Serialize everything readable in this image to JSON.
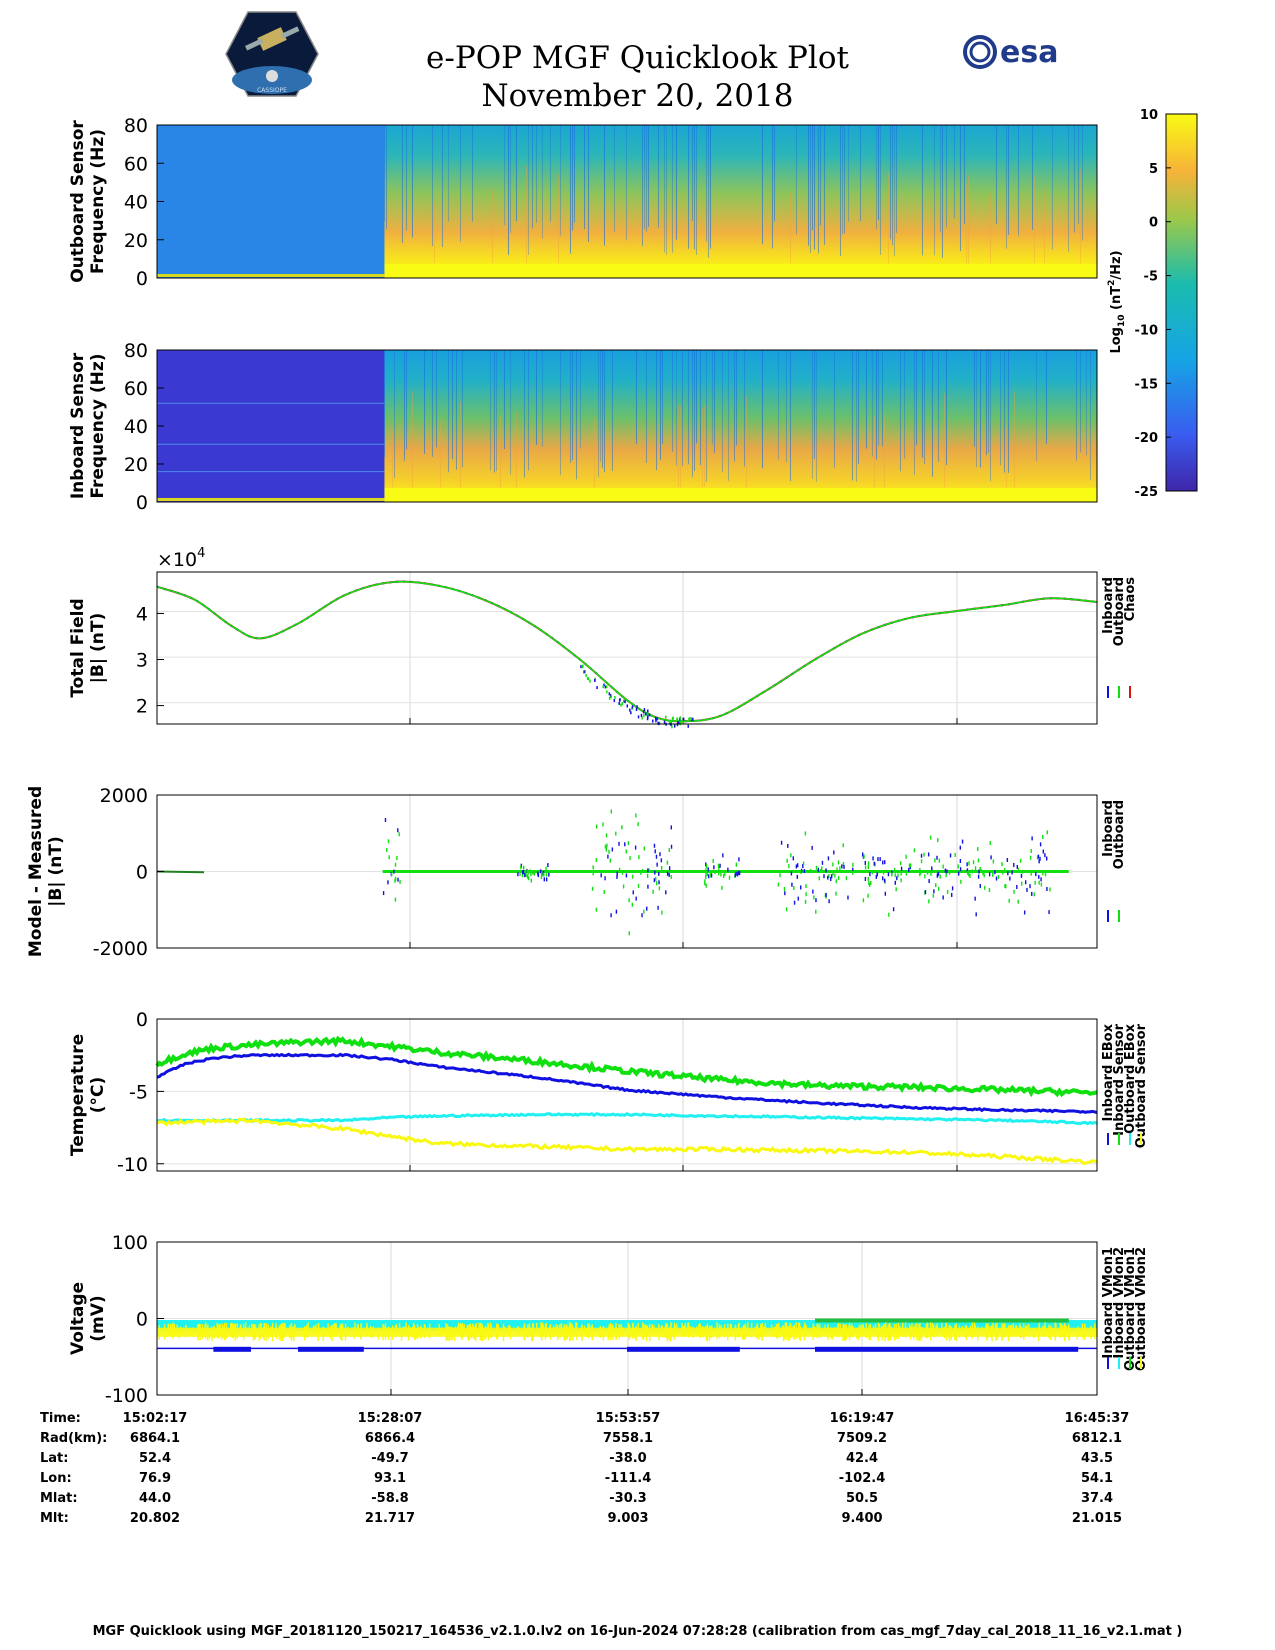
{
  "header": {
    "title": "e-POP MGF Quicklook Plot",
    "date": "November 20, 2018",
    "logo_left": "CASSIOPE",
    "logo_right": "esa"
  },
  "colors": {
    "inboard": "#1010e0",
    "outboard": "#10e010",
    "chaos": "#e01010",
    "cyan": "#20f0f0",
    "yellow": "#f8f810",
    "spectro_low_outboard": "#2a86e6",
    "spectro_low_inboard": "#3a3ad2"
  },
  "colorbar": {
    "label": "Log10 (nT^2/Hz)",
    "label_main": "Log",
    "label_sub": "10",
    "label_rest1": " (nT",
    "label_sup": "2",
    "label_rest2": "/Hz)",
    "ticks": [
      "10",
      "5",
      "0",
      "-5",
      "-10",
      "-15",
      "-20",
      "-25"
    ],
    "range": [
      -25,
      10
    ]
  },
  "chart_data": [
    {
      "type": "heatmap",
      "name": "outboard-spectrogram",
      "ylabel1": "Outboard Sensor",
      "ylabel2": "Frequency (Hz)",
      "ylim": [
        0,
        80
      ],
      "yticks": [
        "80",
        "60",
        "40",
        "20",
        "0"
      ],
      "change_fraction": 0.242
    },
    {
      "type": "heatmap",
      "name": "inboard-spectrogram",
      "ylabel1": "Inboard Sensor",
      "ylabel2": "Frequency (Hz)",
      "ylim": [
        0,
        80
      ],
      "yticks": [
        "80",
        "60",
        "40",
        "20",
        "0"
      ],
      "change_fraction": 0.242
    },
    {
      "type": "line",
      "name": "total-field",
      "ylabel1": "Total Field",
      "ylabel2": "|B| (nT)",
      "exponent": "×10",
      "exponent_power": "4",
      "ylim": [
        1.6,
        4.9
      ],
      "yticks": [
        "4",
        "3",
        "2"
      ],
      "legend": [
        "Inboard",
        "Outboard",
        "Chaos"
      ],
      "x": [
        0,
        0.04,
        0.08,
        0.11,
        0.15,
        0.2,
        0.25,
        0.3,
        0.35,
        0.4,
        0.45,
        0.5,
        0.53,
        0.56,
        0.6,
        0.65,
        0.7,
        0.75,
        0.8,
        0.85,
        0.9,
        0.95,
        1.0
      ],
      "values": [
        4.58,
        4.3,
        3.72,
        3.46,
        3.78,
        4.4,
        4.68,
        4.6,
        4.28,
        3.75,
        3.0,
        2.12,
        1.75,
        1.66,
        1.78,
        2.35,
        3.0,
        3.56,
        3.9,
        4.05,
        4.18,
        4.33,
        4.25
      ]
    },
    {
      "type": "scatter",
      "name": "model-minus-measured",
      "ylabel1": "Model - Measured",
      "ylabel2": "|B| (nT)",
      "ylim": [
        -2000,
        2000
      ],
      "yticks": [
        "2000",
        "0",
        "-2000"
      ],
      "legend": [
        "Inboard",
        "Outboard"
      ]
    },
    {
      "type": "line",
      "name": "temperature",
      "ylabel1": "Temperature",
      "ylabel2": "(°C)",
      "ylim": [
        -10.5,
        0
      ],
      "yticks": [
        "0",
        "-5",
        "-10"
      ],
      "legend": [
        "Inboard EBox",
        "Inboard Sensor",
        "Outboard EBox",
        "Outboard Sensor"
      ],
      "x": [
        0,
        0.03,
        0.06,
        0.1,
        0.15,
        0.2,
        0.25,
        0.3,
        0.4,
        0.5,
        0.6,
        0.7,
        0.8,
        0.9,
        1.0
      ],
      "series": [
        {
          "name": "Outboard EBox",
          "color": "outboard",
          "values": [
            -3.1,
            -2.4,
            -2.0,
            -1.8,
            -1.6,
            -1.5,
            -1.9,
            -2.3,
            -2.9,
            -3.6,
            -4.2,
            -4.6,
            -4.7,
            -4.9,
            -5.1
          ]
        },
        {
          "name": "Inboard EBox",
          "color": "inboard",
          "values": [
            -4.0,
            -3.1,
            -2.7,
            -2.5,
            -2.5,
            -2.5,
            -2.8,
            -3.3,
            -4.0,
            -4.9,
            -5.4,
            -5.8,
            -6.1,
            -6.3,
            -6.4
          ]
        },
        {
          "name": "Outboard Sensor",
          "color": "cyan",
          "values": [
            -7.0,
            -7.0,
            -7.0,
            -7.0,
            -7.0,
            -7.0,
            -6.8,
            -6.7,
            -6.6,
            -6.6,
            -6.7,
            -6.8,
            -6.9,
            -7.0,
            -7.2
          ]
        },
        {
          "name": "Inboard Sensor",
          "color": "yellow",
          "values": [
            -7.2,
            -7.1,
            -7.1,
            -7.0,
            -7.3,
            -7.6,
            -8.1,
            -8.6,
            -8.8,
            -9.0,
            -9.0,
            -9.1,
            -9.2,
            -9.5,
            -9.9
          ]
        }
      ]
    },
    {
      "type": "line",
      "name": "voltage",
      "ylabel1": "Voltage",
      "ylabel2": "(mV)",
      "ylim": [
        -100,
        100
      ],
      "yticks": [
        "100",
        "0",
        "-100"
      ],
      "legend": [
        "Inboard VMon1",
        "Inboard VMon2",
        "Outboard VMon1",
        "Outboard VMon2"
      ]
    }
  ],
  "orbit_table": {
    "row_labels": [
      "Time:",
      "Rad(km):",
      "Lat:",
      "Lon:",
      "Mlat:",
      "Mlt:"
    ],
    "columns": [
      [
        "15:02:17",
        "6864.1",
        "52.4",
        "76.9",
        "44.0",
        "20.802"
      ],
      [
        "15:28:07",
        "6866.4",
        "-49.7",
        "93.1",
        "-58.8",
        "21.717"
      ],
      [
        "15:53:57",
        "7558.1",
        "-38.0",
        "-111.4",
        "-30.3",
        "9.003"
      ],
      [
        "16:19:47",
        "7509.2",
        "42.4",
        "-102.4",
        "50.5",
        "9.400"
      ],
      [
        "16:45:37",
        "6812.1",
        "43.5",
        "54.1",
        "37.4",
        "21.015"
      ]
    ]
  },
  "footer": "MGF Quicklook using MGF_20181120_150217_164536_v2.1.0.lv2 on 16-Jun-2024 07:28:28 (calibration from cas_mgf_7day_cal_2018_11_16_v2.1.mat )"
}
